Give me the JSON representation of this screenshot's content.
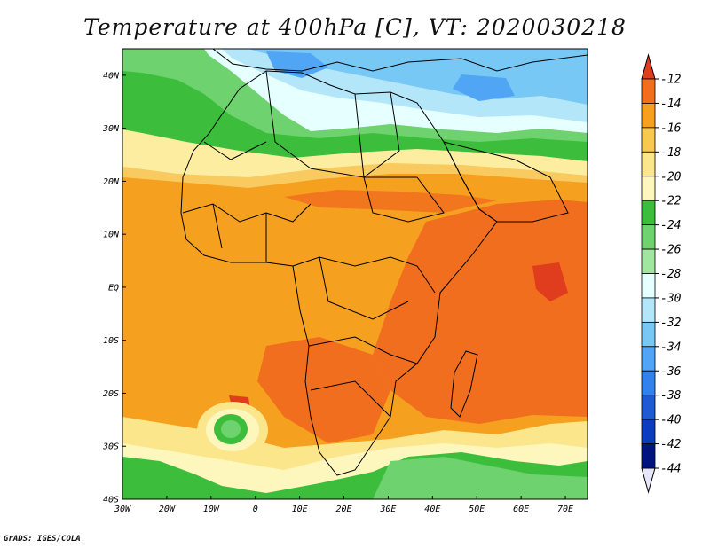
{
  "title": "Temperature at 400hPa [C], VT: 2020030218",
  "footer": "GrADS: IGES/COLA",
  "map": {
    "lon_range": [
      -30,
      75
    ],
    "lat_range": [
      -40,
      45
    ],
    "lon_ticks": [
      {
        "value": -30,
        "label": "30W"
      },
      {
        "value": -20,
        "label": "20W"
      },
      {
        "value": -10,
        "label": "10W"
      },
      {
        "value": 0,
        "label": "0"
      },
      {
        "value": 10,
        "label": "10E"
      },
      {
        "value": 20,
        "label": "20E"
      },
      {
        "value": 30,
        "label": "30E"
      },
      {
        "value": 40,
        "label": "40E"
      },
      {
        "value": 50,
        "label": "50E"
      },
      {
        "value": 60,
        "label": "60E"
      },
      {
        "value": 70,
        "label": "70E"
      }
    ],
    "lat_ticks": [
      {
        "value": 40,
        "label": "40N"
      },
      {
        "value": 30,
        "label": "30N"
      },
      {
        "value": 20,
        "label": "20N"
      },
      {
        "value": 10,
        "label": "10N"
      },
      {
        "value": 0,
        "label": "EQ"
      },
      {
        "value": -10,
        "label": "10S"
      },
      {
        "value": -20,
        "label": "20S"
      },
      {
        "value": -30,
        "label": "30S"
      },
      {
        "value": -40,
        "label": "40S"
      }
    ]
  },
  "colorbar": {
    "levels": [
      -12,
      -14,
      -16,
      -18,
      -20,
      -22,
      -24,
      -26,
      -28,
      -30,
      -32,
      -34,
      -36,
      -38,
      -40,
      -42,
      -44
    ],
    "colors": [
      "#e03c1e",
      "#f06e1e",
      "#f5a01e",
      "#f8c850",
      "#fbe68c",
      "#fdf7be",
      "#3cbe3c",
      "#6ed26e",
      "#a0e6a0",
      "#e6ffff",
      "#b4e6fa",
      "#78c8f5",
      "#50a5f5",
      "#3282eb",
      "#1e5ad2",
      "#0a3cbe",
      "#00147d",
      "#e6e6fa"
    ]
  }
}
